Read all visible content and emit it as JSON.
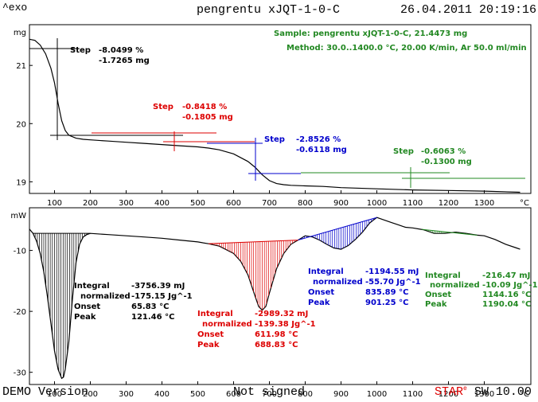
{
  "header": {
    "exo_label": "^exo",
    "title": "pengrentu xJQT-1-0-C",
    "datetime": "26.04.2011 20:19:16"
  },
  "footer": {
    "left": "DEMO Version",
    "center": "Not signed",
    "star": "STAR",
    "e": "e",
    "sw": "SW 10.00"
  },
  "chart_data": [
    {
      "type": "line",
      "name": "TGA",
      "xlabel": "°C",
      "ylabel": "mg",
      "xlim": [
        30,
        1430
      ],
      "ylim": [
        18.8,
        21.7
      ],
      "xticks": [
        100,
        200,
        300,
        400,
        500,
        600,
        700,
        800,
        900,
        1000,
        1100,
        1200,
        1300
      ],
      "yticks": [
        19,
        20,
        21
      ],
      "sample_text": "Sample: pengrentu xJQT-1-0-C, 21.4473 mg",
      "method_text": "Method: 30.0..1400.0 °C, 20.00 K/min, Ar 50.0 ml/min",
      "curve": {
        "x": [
          30,
          45,
          60,
          75,
          90,
          100,
          110,
          120,
          130,
          140,
          160,
          180,
          200,
          250,
          300,
          350,
          400,
          450,
          500,
          530,
          560,
          600,
          640,
          660,
          680,
          700,
          720,
          740,
          760,
          800,
          850,
          900,
          1000,
          1100,
          1200,
          1300,
          1400
        ],
        "y": [
          21.45,
          21.43,
          21.35,
          21.2,
          20.95,
          20.7,
          20.35,
          20.05,
          19.88,
          19.8,
          19.75,
          19.73,
          19.72,
          19.7,
          19.68,
          19.66,
          19.64,
          19.62,
          19.6,
          19.58,
          19.55,
          19.48,
          19.35,
          19.25,
          19.12,
          19.02,
          18.97,
          18.95,
          18.94,
          18.93,
          18.92,
          18.9,
          18.88,
          18.86,
          18.85,
          18.84,
          18.82
        ]
      },
      "steps": [
        {
          "label": "Step",
          "pct": "-8.0499 %",
          "mg": "-1.7265 mg",
          "color": "#000000"
        },
        {
          "label": "Step",
          "pct": "-0.8418 %",
          "mg": "-0.1805 mg",
          "color": "#dd0000"
        },
        {
          "label": "Step",
          "pct": "-2.8526 %",
          "mg": "-0.6118 mg",
          "color": "#0000cc"
        },
        {
          "label": "Step",
          "pct": "-0.6063 %",
          "mg": "-0.1300 mg",
          "color": "#228822"
        }
      ]
    },
    {
      "type": "line",
      "name": "DSC",
      "xlabel": "°C",
      "ylabel": "mW",
      "xlim": [
        30,
        1430
      ],
      "ylim": [
        -32,
        -3
      ],
      "xticks": [
        100,
        200,
        300,
        400,
        500,
        600,
        700,
        800,
        900,
        1000,
        1100,
        1200,
        1300
      ],
      "yticks": [
        -10,
        -20,
        -30
      ],
      "curve": {
        "x": [
          30,
          40,
          50,
          60,
          70,
          80,
          90,
          100,
          110,
          120,
          125,
          130,
          140,
          150,
          160,
          170,
          180,
          190,
          200,
          250,
          300,
          350,
          400,
          450,
          500,
          530,
          560,
          600,
          620,
          640,
          660,
          670,
          680,
          690,
          700,
          720,
          740,
          760,
          780,
          800,
          820,
          840,
          860,
          880,
          900,
          920,
          940,
          960,
          980,
          1000,
          1020,
          1040,
          1060,
          1080,
          1100,
          1130,
          1160,
          1190,
          1220,
          1250,
          1280,
          1300,
          1330,
          1360,
          1390,
          1400
        ],
        "y": [
          -6.5,
          -7.2,
          -8.5,
          -10.5,
          -13.5,
          -17.5,
          -22,
          -26.5,
          -29.5,
          -31,
          -30.8,
          -29.5,
          -25,
          -18,
          -12,
          -9,
          -7.8,
          -7.4,
          -7.2,
          -7.4,
          -7.6,
          -7.8,
          -8,
          -8.3,
          -8.6,
          -8.9,
          -9.3,
          -10.5,
          -11.8,
          -14,
          -17.5,
          -19.2,
          -19.8,
          -19.2,
          -17,
          -13,
          -10.5,
          -9,
          -8.3,
          -7.6,
          -7.8,
          -8.3,
          -9,
          -9.6,
          -9.8,
          -9.2,
          -8.2,
          -7,
          -5.5,
          -4.6,
          -5,
          -5.4,
          -5.8,
          -6.2,
          -6.3,
          -6.6,
          -7.2,
          -7.2,
          -7,
          -7.2,
          -7.5,
          -7.6,
          -8.2,
          -9,
          -9.6,
          -9.8
        ]
      },
      "integrals": [
        {
          "integral_label": "Integral",
          "integral": "-3756.39 mJ",
          "norm_label": "normalized",
          "norm": "-175.15 Jg^-1",
          "onset_label": "Onset",
          "onset": "65.83 °C",
          "peak_label": "Peak",
          "peak": "121.46 °C",
          "color": "#000000"
        },
        {
          "integral_label": "Integral",
          "integral": "-2989.32 mJ",
          "norm_label": "normalized",
          "norm": "-139.38 Jg^-1",
          "onset_label": "Onset",
          "onset": "611.98 °C",
          "peak_label": "Peak",
          "peak": "688.83 °C",
          "color": "#dd0000"
        },
        {
          "integral_label": "Integral",
          "integral": "-1194.55 mJ",
          "norm_label": "normalized",
          "norm": "-55.70 Jg^-1",
          "onset_label": "Onset",
          "onset": "835.89 °C",
          "peak_label": "Peak",
          "peak": "901.25 °C",
          "color": "#0000cc"
        },
        {
          "integral_label": "Integral",
          "integral": "-216.47 mJ",
          "norm_label": "normalized",
          "norm": "-10.09 Jg^-1",
          "onset_label": "Onset",
          "onset": "1144.16 °C",
          "peak_label": "Peak",
          "peak": "1190.04 °C",
          "color": "#228822"
        }
      ]
    }
  ]
}
